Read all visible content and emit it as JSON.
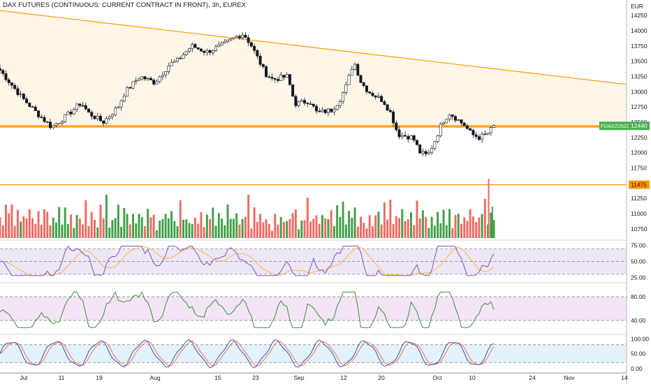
{
  "header": {
    "title": "DAX FUTURES (CONTINUOUS: CURRENT CONTRACT IN FRONT), 3h, EUREX"
  },
  "colors": {
    "up": "#26a69a",
    "down": "#ef5350",
    "candle": "#131722",
    "trend": "#ff9800",
    "vol_up": "#43a047",
    "vol_down": "#f06a63",
    "rsi": "#7e57c2",
    "rsi_ma": "#ffb74d",
    "rsi_band": "#ede7f6",
    "osc": "#388e3c",
    "osc_band": "#f3e5f5",
    "stoch_k": "#3f51b5",
    "stoch_d": "#ff7043",
    "stoch_band": "#e3f2fd",
    "price_tag": "#4caf50",
    "level_tag": "#ff9800"
  },
  "chart_data": [
    {
      "type": "candlestick",
      "title": "DAX FUTURES (CONTINUOUS: CURRENT CONTRACT IN FRONT), 3h, EUREX",
      "currency": "EUR",
      "x_tick_labels": [
        "Jul",
        "11",
        "19",
        "Aug",
        "15",
        "23",
        "Sep",
        "12",
        "20",
        "Oct",
        "10",
        "24",
        "Nov",
        "14"
      ],
      "y_tick_labels": [
        "14250",
        "14000",
        "13750",
        "13500",
        "13250",
        "13000",
        "12750",
        "12500",
        "12250",
        "12000",
        "11750",
        "11500",
        "11250",
        "11000",
        "10750"
      ],
      "ylim": [
        10600,
        14400
      ],
      "close_path": [
        [
          0,
          13350
        ],
        [
          3,
          12900
        ],
        [
          5,
          12650
        ],
        [
          7,
          12420
        ],
        [
          9,
          12600
        ],
        [
          11,
          12820
        ],
        [
          12,
          12650
        ],
        [
          14,
          12500
        ],
        [
          16,
          12750
        ],
        [
          17,
          13000
        ],
        [
          19,
          13250
        ],
        [
          21,
          13150
        ],
        [
          23,
          13450
        ],
        [
          24,
          13500
        ],
        [
          26,
          13750
        ],
        [
          28,
          13650
        ],
        [
          30,
          13750
        ],
        [
          32,
          13900
        ],
        [
          33,
          13950
        ],
        [
          34,
          13780
        ],
        [
          36,
          13300
        ],
        [
          37,
          13200
        ],
        [
          39,
          13250
        ],
        [
          40,
          12800
        ],
        [
          42,
          12850
        ],
        [
          43,
          12650
        ],
        [
          45,
          12700
        ],
        [
          46,
          12850
        ],
        [
          47,
          13100
        ],
        [
          48,
          13500
        ],
        [
          49,
          13150
        ],
        [
          50,
          13000
        ],
        [
          52,
          12850
        ],
        [
          53,
          12650
        ],
        [
          54,
          12300
        ],
        [
          56,
          12250
        ],
        [
          57,
          12000
        ],
        [
          58,
          11950
        ],
        [
          59,
          12200
        ],
        [
          60,
          12500
        ],
        [
          61,
          12650
        ],
        [
          63,
          12450
        ],
        [
          64,
          12300
        ],
        [
          65,
          12250
        ],
        [
          66,
          12300
        ],
        [
          67,
          12430
        ]
      ],
      "trendlines": [
        {
          "from": [
            0,
            14330
          ],
          "to": [
            85,
            13120
          ]
        },
        {
          "from": [
            0,
            12440
          ],
          "to": [
            85,
            12440
          ]
        },
        {
          "from": [
            0,
            12420
          ],
          "to": [
            85,
            12420
          ]
        },
        {
          "from": [
            0,
            11475
          ],
          "to": [
            85,
            11475
          ]
        }
      ],
      "price_labels": [
        {
          "symbol": "FDAXZ2022",
          "value": "12440"
        },
        {
          "value": "11475"
        }
      ]
    },
    {
      "type": "bar",
      "name": "volume",
      "note": "relative volume per bar 0-1 drawn at base of price pane",
      "pattern": [
        0.55,
        0.35,
        0.72,
        0.48,
        0.9,
        0.3,
        0.62,
        0.44,
        0.8,
        0.38,
        0.66,
        0.5,
        0.28,
        0.75,
        0.42,
        0.58
      ]
    },
    {
      "type": "line",
      "name": "rsi",
      "y_tick_labels": [
        "75.00",
        "50.00",
        "25.00"
      ],
      "ylim": [
        20,
        80
      ],
      "bands": [
        70,
        50,
        30
      ]
    },
    {
      "type": "line",
      "name": "oscillator",
      "y_tick_labels": [
        "80.00",
        "40.00"
      ],
      "ylim": [
        20,
        100
      ],
      "bands": [
        80,
        40
      ]
    },
    {
      "type": "line",
      "name": "stochastic",
      "y_tick_labels": [
        "100.00",
        "50.00",
        "0.00"
      ],
      "ylim": [
        -10,
        110
      ],
      "bands": [
        80,
        20
      ]
    }
  ]
}
